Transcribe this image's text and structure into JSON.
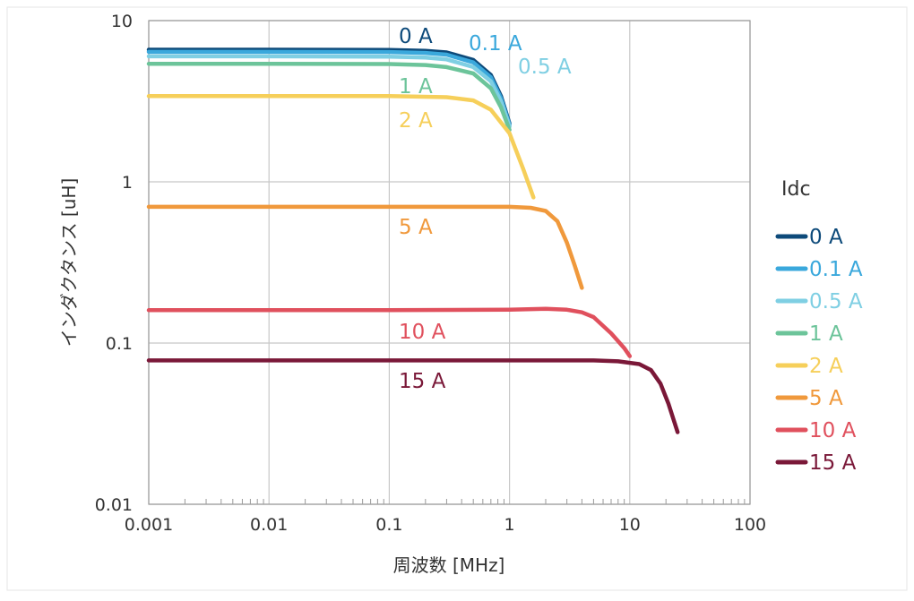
{
  "chart_data": {
    "type": "line",
    "xlabel": "周波数 [MHz]",
    "ylabel": "インダクタンス [uH]",
    "x_scale": "log",
    "y_scale": "log",
    "xlim": [
      0.001,
      100
    ],
    "ylim": [
      0.01,
      10
    ],
    "x_ticks": [
      "0.001",
      "0.01",
      "0.1",
      "1",
      "10",
      "100"
    ],
    "y_ticks": [
      "0.01",
      "0.1",
      "1",
      "10"
    ],
    "grid": true,
    "legend_title": "Idc",
    "legend_position": "right",
    "series": [
      {
        "name": "0 A",
        "label": "0 A",
        "color": "#0d4a7a",
        "points": [
          [
            0.001,
            6.6
          ],
          [
            0.01,
            6.6
          ],
          [
            0.1,
            6.58
          ],
          [
            0.2,
            6.5
          ],
          [
            0.3,
            6.35
          ],
          [
            0.5,
            5.7
          ],
          [
            0.7,
            4.6
          ],
          [
            0.85,
            3.4
          ],
          [
            1.0,
            2.3
          ]
        ]
      },
      {
        "name": "0.1 A",
        "label": "0.1 A",
        "color": "#3aa8dc",
        "points": [
          [
            0.001,
            6.4
          ],
          [
            0.01,
            6.4
          ],
          [
            0.1,
            6.38
          ],
          [
            0.2,
            6.3
          ],
          [
            0.3,
            6.15
          ],
          [
            0.5,
            5.5
          ],
          [
            0.7,
            4.45
          ],
          [
            0.85,
            3.3
          ],
          [
            1.0,
            2.25
          ]
        ]
      },
      {
        "name": "0.5 A",
        "label": "0.5 A",
        "color": "#7fcfe3",
        "points": [
          [
            0.001,
            6.0
          ],
          [
            0.01,
            6.0
          ],
          [
            0.1,
            5.98
          ],
          [
            0.2,
            5.9
          ],
          [
            0.3,
            5.75
          ],
          [
            0.5,
            5.15
          ],
          [
            0.7,
            4.2
          ],
          [
            0.85,
            3.15
          ],
          [
            1.0,
            2.2
          ]
        ]
      },
      {
        "name": "1 A",
        "label": "1 A",
        "color": "#6cc49a",
        "points": [
          [
            0.001,
            5.4
          ],
          [
            0.01,
            5.4
          ],
          [
            0.1,
            5.38
          ],
          [
            0.2,
            5.3
          ],
          [
            0.3,
            5.15
          ],
          [
            0.5,
            4.7
          ],
          [
            0.7,
            3.8
          ],
          [
            0.85,
            2.9
          ],
          [
            1.0,
            2.1
          ]
        ]
      },
      {
        "name": "2 A",
        "label": "2 A",
        "color": "#f6cf5a",
        "points": [
          [
            0.001,
            3.4
          ],
          [
            0.01,
            3.4
          ],
          [
            0.1,
            3.4
          ],
          [
            0.3,
            3.35
          ],
          [
            0.5,
            3.2
          ],
          [
            0.7,
            2.8
          ],
          [
            1.0,
            2.0
          ],
          [
            1.3,
            1.2
          ],
          [
            1.58,
            0.8
          ]
        ]
      },
      {
        "name": "5 A",
        "label": "5 A",
        "color": "#f0993c",
        "points": [
          [
            0.001,
            0.7
          ],
          [
            0.01,
            0.7
          ],
          [
            0.1,
            0.7
          ],
          [
            1.0,
            0.7
          ],
          [
            1.5,
            0.69
          ],
          [
            2.0,
            0.66
          ],
          [
            2.5,
            0.57
          ],
          [
            3.0,
            0.42
          ],
          [
            3.5,
            0.3
          ],
          [
            4.0,
            0.22
          ]
        ]
      },
      {
        "name": "10 A",
        "label": "10 A",
        "color": "#e0505d",
        "points": [
          [
            0.001,
            0.16
          ],
          [
            0.01,
            0.16
          ],
          [
            0.1,
            0.16
          ],
          [
            1.0,
            0.161
          ],
          [
            2.0,
            0.163
          ],
          [
            3.0,
            0.161
          ],
          [
            4.0,
            0.155
          ],
          [
            5.0,
            0.145
          ],
          [
            7.0,
            0.115
          ],
          [
            9.0,
            0.093
          ],
          [
            10.0,
            0.083
          ]
        ]
      },
      {
        "name": "15 A",
        "label": "15 A",
        "color": "#7a1838",
        "points": [
          [
            0.001,
            0.078
          ],
          [
            0.01,
            0.078
          ],
          [
            0.1,
            0.078
          ],
          [
            1.0,
            0.078
          ],
          [
            5.0,
            0.078
          ],
          [
            8.0,
            0.077
          ],
          [
            12.0,
            0.074
          ],
          [
            15.0,
            0.068
          ],
          [
            18.0,
            0.056
          ],
          [
            21.0,
            0.042
          ],
          [
            23.0,
            0.034
          ],
          [
            25.0,
            0.028
          ]
        ]
      }
    ]
  }
}
